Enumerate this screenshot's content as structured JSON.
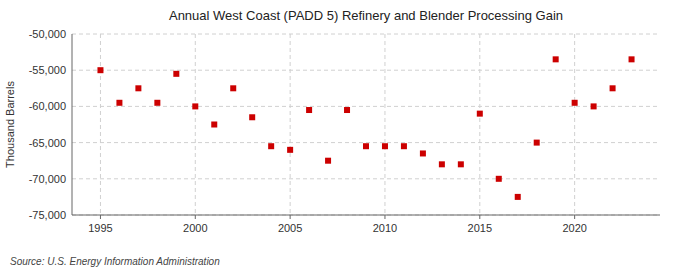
{
  "chart_data": {
    "type": "scatter",
    "title": "Annual West Coast (PADD 5) Refinery and Blender Processing Gain",
    "ylabel": "Thousand Barrels",
    "annotations": [
      "Source: U.S. Energy Information Administration"
    ],
    "x": [
      1995,
      1996,
      1997,
      1998,
      1999,
      2000,
      2001,
      2002,
      2003,
      2004,
      2005,
      2006,
      2007,
      2008,
      2009,
      2010,
      2011,
      2012,
      2013,
      2014,
      2015,
      2016,
      2017,
      2018,
      2019,
      2020,
      2021,
      2022,
      2023
    ],
    "values": [
      -55000,
      -59500,
      -57500,
      -59500,
      -55500,
      -60000,
      -62500,
      -57500,
      -61500,
      -65500,
      -66000,
      -60500,
      -67500,
      -60500,
      -65500,
      -65500,
      -65500,
      -66500,
      -68000,
      -68000,
      -61000,
      -70000,
      -72500,
      -65000,
      -53500,
      -59500,
      -60000,
      -57500,
      -53500
    ],
    "color": "#cc0000",
    "marker": "square",
    "grid": true,
    "xlim": [
      1993.5,
      2024.5
    ],
    "xticks": [
      1995,
      2000,
      2005,
      2010,
      2015,
      2020
    ],
    "ylim": [
      -75000,
      -50000
    ],
    "yticks": [
      {
        "value": -75000,
        "label": "-75,000"
      },
      {
        "value": -70000,
        "label": "-70,000"
      },
      {
        "value": -65000,
        "label": "-65,000"
      },
      {
        "value": -60000,
        "label": "-60,000"
      },
      {
        "value": -55000,
        "label": "-55,000"
      },
      {
        "value": -50000,
        "label": "-50,000"
      }
    ]
  }
}
